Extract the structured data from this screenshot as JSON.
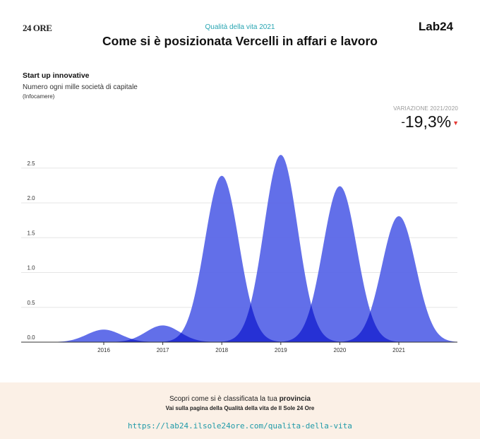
{
  "header": {
    "left_logo": "24 ORE",
    "right_logo": "Lab24",
    "kicker": "Qualità della vita 2021",
    "title": "Come si è posizionata Vercelli in affari e lavoro"
  },
  "indicator": {
    "name": "Start up innovative",
    "description": "Numero ogni mille società di capitale",
    "source": "(Infocamere)"
  },
  "variation": {
    "label": "VARIAZIONE 2021/2020",
    "sign": "-",
    "value": "19,3%",
    "arrow": "▼",
    "arrow_color": "#e53935"
  },
  "chart_data": {
    "type": "area",
    "categories": [
      "2016",
      "2017",
      "2018",
      "2019",
      "2020",
      "2021"
    ],
    "values": [
      0.18,
      0.24,
      2.39,
      2.69,
      2.24,
      1.81
    ],
    "title": "",
    "xlabel": "",
    "ylabel": "",
    "ylim": [
      0,
      2.5
    ],
    "yticks": [
      "0.0",
      "0.5",
      "1.0",
      "1.5",
      "2.0",
      "2.5"
    ],
    "grid": true,
    "color": "#5a67e8",
    "overlap_color": "#2f3fe6"
  },
  "footer": {
    "line1_prefix": "Scopri come si è classificata la tua ",
    "line1_bold": "provincia",
    "line2": "Vai sulla pagina della Qualità della vita de Il Sole 24 Ore",
    "link": "https://lab24.ilsole24ore.com/qualita-della-vita"
  }
}
